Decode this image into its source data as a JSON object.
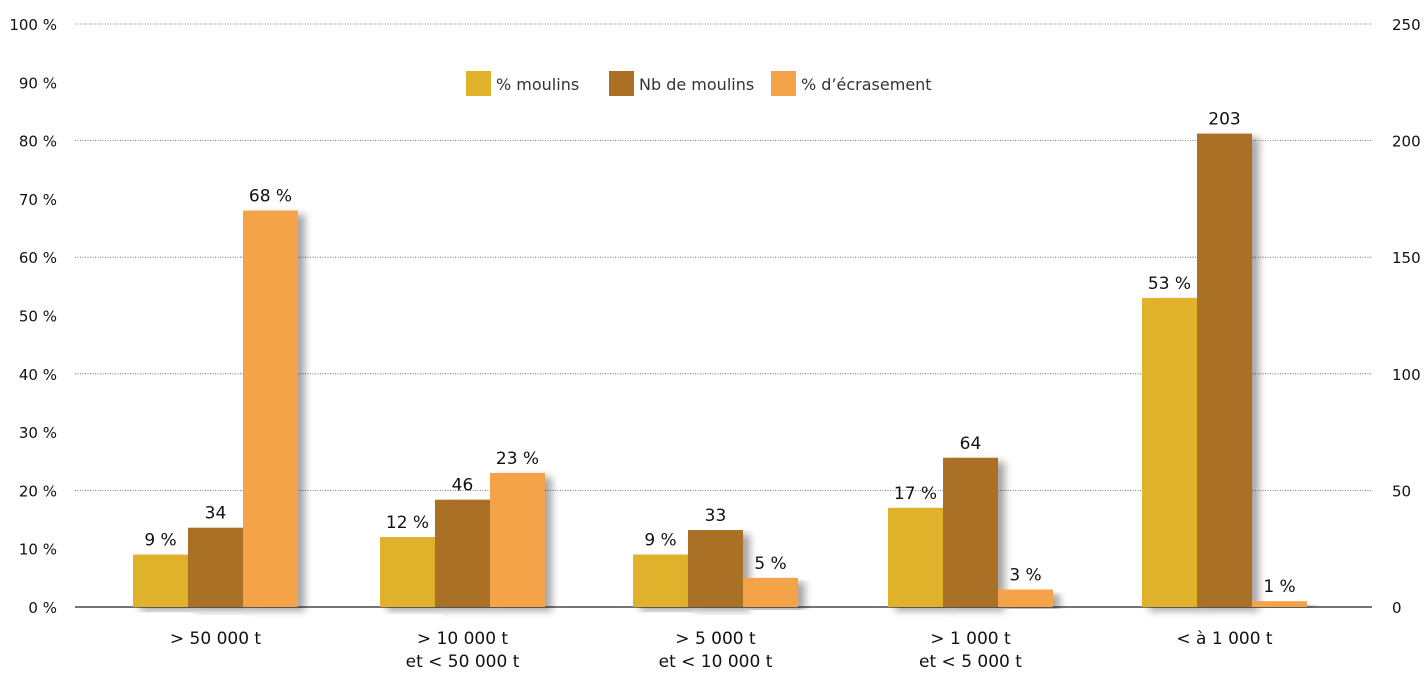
{
  "chart_data": {
    "type": "bar",
    "title": "",
    "xlabel": "",
    "ylabel": "",
    "ylim": [
      0,
      100
    ],
    "y2lim": [
      0,
      250
    ],
    "grid": true,
    "legend_position": "top-center",
    "y_ticks": [
      {
        "value": 0,
        "label": "0 %"
      },
      {
        "value": 10,
        "label": "10 %"
      },
      {
        "value": 20,
        "label": "20 %"
      },
      {
        "value": 30,
        "label": "30 %"
      },
      {
        "value": 40,
        "label": "40 %"
      },
      {
        "value": 50,
        "label": "50 %"
      },
      {
        "value": 60,
        "label": "60 %"
      },
      {
        "value": 70,
        "label": "70 %"
      },
      {
        "value": 80,
        "label": "80 %"
      },
      {
        "value": 90,
        "label": "90 %"
      },
      {
        "value": 100,
        "label": "100 %"
      }
    ],
    "y2_ticks": [
      {
        "value": 0,
        "label": "0"
      },
      {
        "value": 50,
        "label": "50"
      },
      {
        "value": 100,
        "label": "100"
      },
      {
        "value": 150,
        "label": "150"
      },
      {
        "value": 200,
        "label": "200"
      },
      {
        "value": 250,
        "label": "250"
      }
    ],
    "categories": [
      {
        "line1": "> 50 000 t",
        "line2": ""
      },
      {
        "line1": "> 10 000 t",
        "line2": "et < 50 000 t"
      },
      {
        "line1": "> 5 000 t",
        "line2": "et < 10 000 t"
      },
      {
        "line1": "> 1 000 t",
        "line2": "et < 5 000 t"
      },
      {
        "line1": "< à 1 000 t",
        "line2": ""
      }
    ],
    "series": [
      {
        "name": "% moulins",
        "axis": "left",
        "color": "#e0b12b",
        "values": [
          9,
          12,
          9,
          17,
          53
        ],
        "labels": [
          "9 %",
          "12 %",
          "9 %",
          "17 %",
          "53 %"
        ]
      },
      {
        "name": "Nb de moulins",
        "axis": "right",
        "color": "#a96f25",
        "values": [
          34,
          46,
          33,
          64,
          203
        ],
        "labels": [
          "34",
          "46",
          "33",
          "64",
          "203"
        ]
      },
      {
        "name": "% d’écrasement",
        "axis": "left",
        "color": "#f5a34a",
        "values": [
          68,
          23,
          5,
          3,
          1
        ],
        "labels": [
          "68 %",
          "23 %",
          "5 %",
          "3 %",
          "1 %"
        ]
      }
    ]
  }
}
